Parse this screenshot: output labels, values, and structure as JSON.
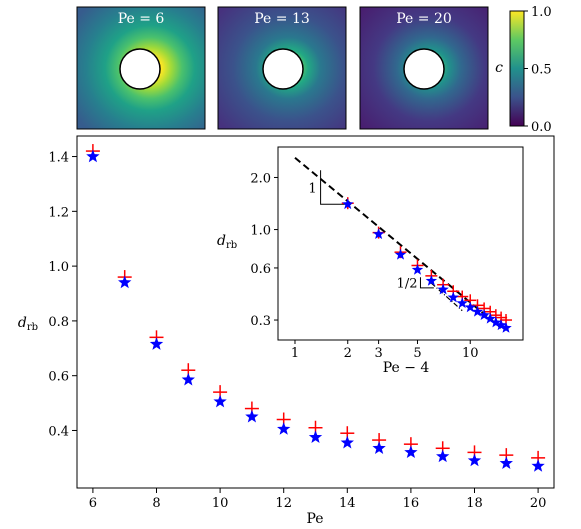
{
  "colorbar": {
    "label": "c",
    "ticks": [
      "1.0",
      "0.5",
      "0.0"
    ],
    "tick_values": [
      1.0,
      0.5,
      0.0
    ],
    "colors": [
      "#440154",
      "#3b528b",
      "#21918c",
      "#5ec962",
      "#fde725"
    ]
  },
  "fields": [
    {
      "title": "Pe = 6",
      "pe": 6
    },
    {
      "title": "Pe = 13",
      "pe": 13
    },
    {
      "title": "Pe = 20",
      "pe": 20
    }
  ],
  "chart_data": [
    {
      "type": "scatter",
      "title": "",
      "xlabel": "Pe",
      "ylabel": "d_rb",
      "xlim": [
        5.5,
        20.5
      ],
      "ylim": [
        0.19,
        1.475
      ],
      "xticks": [
        6,
        8,
        10,
        12,
        14,
        16,
        18,
        20
      ],
      "yticks": [
        0.4,
        0.6,
        0.8,
        1.0,
        1.2,
        1.4
      ],
      "x": [
        6,
        7,
        8,
        9,
        10,
        11,
        12,
        13,
        14,
        15,
        16,
        17,
        18,
        19,
        20
      ],
      "series": [
        {
          "marker": "plus",
          "color": "#ff0000",
          "values": [
            1.42,
            0.96,
            0.74,
            0.62,
            0.54,
            0.48,
            0.44,
            0.41,
            0.39,
            0.365,
            0.35,
            0.335,
            0.32,
            0.31,
            0.3
          ]
        },
        {
          "marker": "star",
          "color": "#0000ff",
          "values": [
            1.4,
            0.94,
            0.715,
            0.585,
            0.505,
            0.45,
            0.405,
            0.375,
            0.355,
            0.335,
            0.32,
            0.305,
            0.29,
            0.28,
            0.27
          ]
        }
      ]
    },
    {
      "type": "scatter",
      "title": "",
      "xlabel": "Pe − 4",
      "ylabel": "d_rb",
      "xscale": "log",
      "yscale": "log",
      "xlim": [
        0.8,
        20
      ],
      "ylim": [
        0.23,
        3.0
      ],
      "xticks": [
        1,
        2,
        3,
        5,
        10
      ],
      "yticks": [
        0.3,
        0.6,
        1.0,
        2.0
      ],
      "x": [
        2,
        3,
        4,
        5,
        6,
        7,
        8,
        9,
        10,
        11,
        12,
        13,
        14,
        15,
        16
      ],
      "series": [
        {
          "marker": "plus",
          "color": "#ff0000",
          "values": [
            1.42,
            0.96,
            0.74,
            0.62,
            0.54,
            0.48,
            0.44,
            0.41,
            0.39,
            0.365,
            0.35,
            0.335,
            0.32,
            0.31,
            0.3
          ]
        },
        {
          "marker": "star",
          "color": "#0000ff",
          "values": [
            1.4,
            0.94,
            0.715,
            0.585,
            0.505,
            0.45,
            0.405,
            0.375,
            0.355,
            0.335,
            0.32,
            0.305,
            0.29,
            0.28,
            0.27
          ]
        }
      ],
      "fit_line": {
        "style": "dashed",
        "x": [
          1,
          15
        ],
        "y": [
          2.6,
          0.27
        ]
      },
      "slope_labels": [
        "1",
        "1/2"
      ]
    }
  ]
}
